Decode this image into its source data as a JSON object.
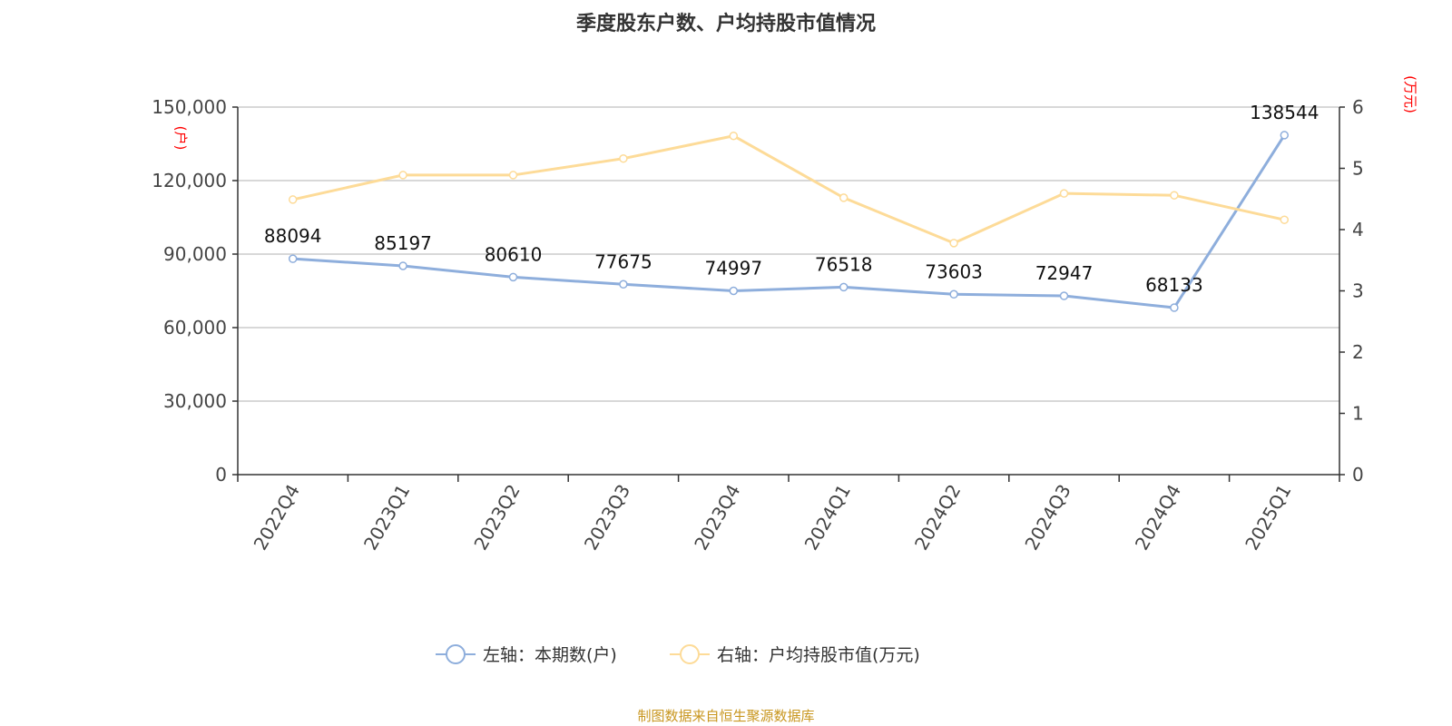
{
  "title": "季度股东户数、户均持股市值情况",
  "source": "制图数据来自恒生聚源数据库",
  "chart_data": {
    "type": "line",
    "title": "季度股东户数、户均持股市值情况",
    "categories": [
      "2022Q4",
      "2023Q1",
      "2023Q2",
      "2023Q3",
      "2023Q4",
      "2024Q1",
      "2024Q2",
      "2024Q3",
      "2024Q4",
      "2025Q1"
    ],
    "left_axis": {
      "label": "(户)",
      "range": [
        0,
        150000
      ],
      "ticks": [
        0,
        30000,
        60000,
        90000,
        120000,
        150000
      ],
      "tick_labels": [
        "0",
        "30,000",
        "60,000",
        "90,000",
        "120,000",
        "150,000"
      ]
    },
    "right_axis": {
      "label": "(万元)",
      "range": [
        0,
        6
      ],
      "ticks": [
        0,
        1,
        2,
        3,
        4,
        5,
        6
      ],
      "tick_labels": [
        "0",
        "1",
        "2",
        "3",
        "4",
        "5",
        "6"
      ]
    },
    "grid": true,
    "legend_position": "bottom",
    "series": [
      {
        "name": "左轴：本期数(户)",
        "axis": "left",
        "color": "#8eaedc",
        "values": [
          88094,
          85197,
          80610,
          77675,
          74997,
          76518,
          73603,
          72947,
          68133,
          138544
        ],
        "show_labels": true
      },
      {
        "name": "右轴：户均持股市值(万元)",
        "axis": "right",
        "color": "#fddb98",
        "values": [
          4.49,
          4.89,
          4.89,
          5.16,
          5.53,
          4.52,
          3.78,
          4.59,
          4.56,
          4.16
        ],
        "show_labels": false
      }
    ]
  }
}
